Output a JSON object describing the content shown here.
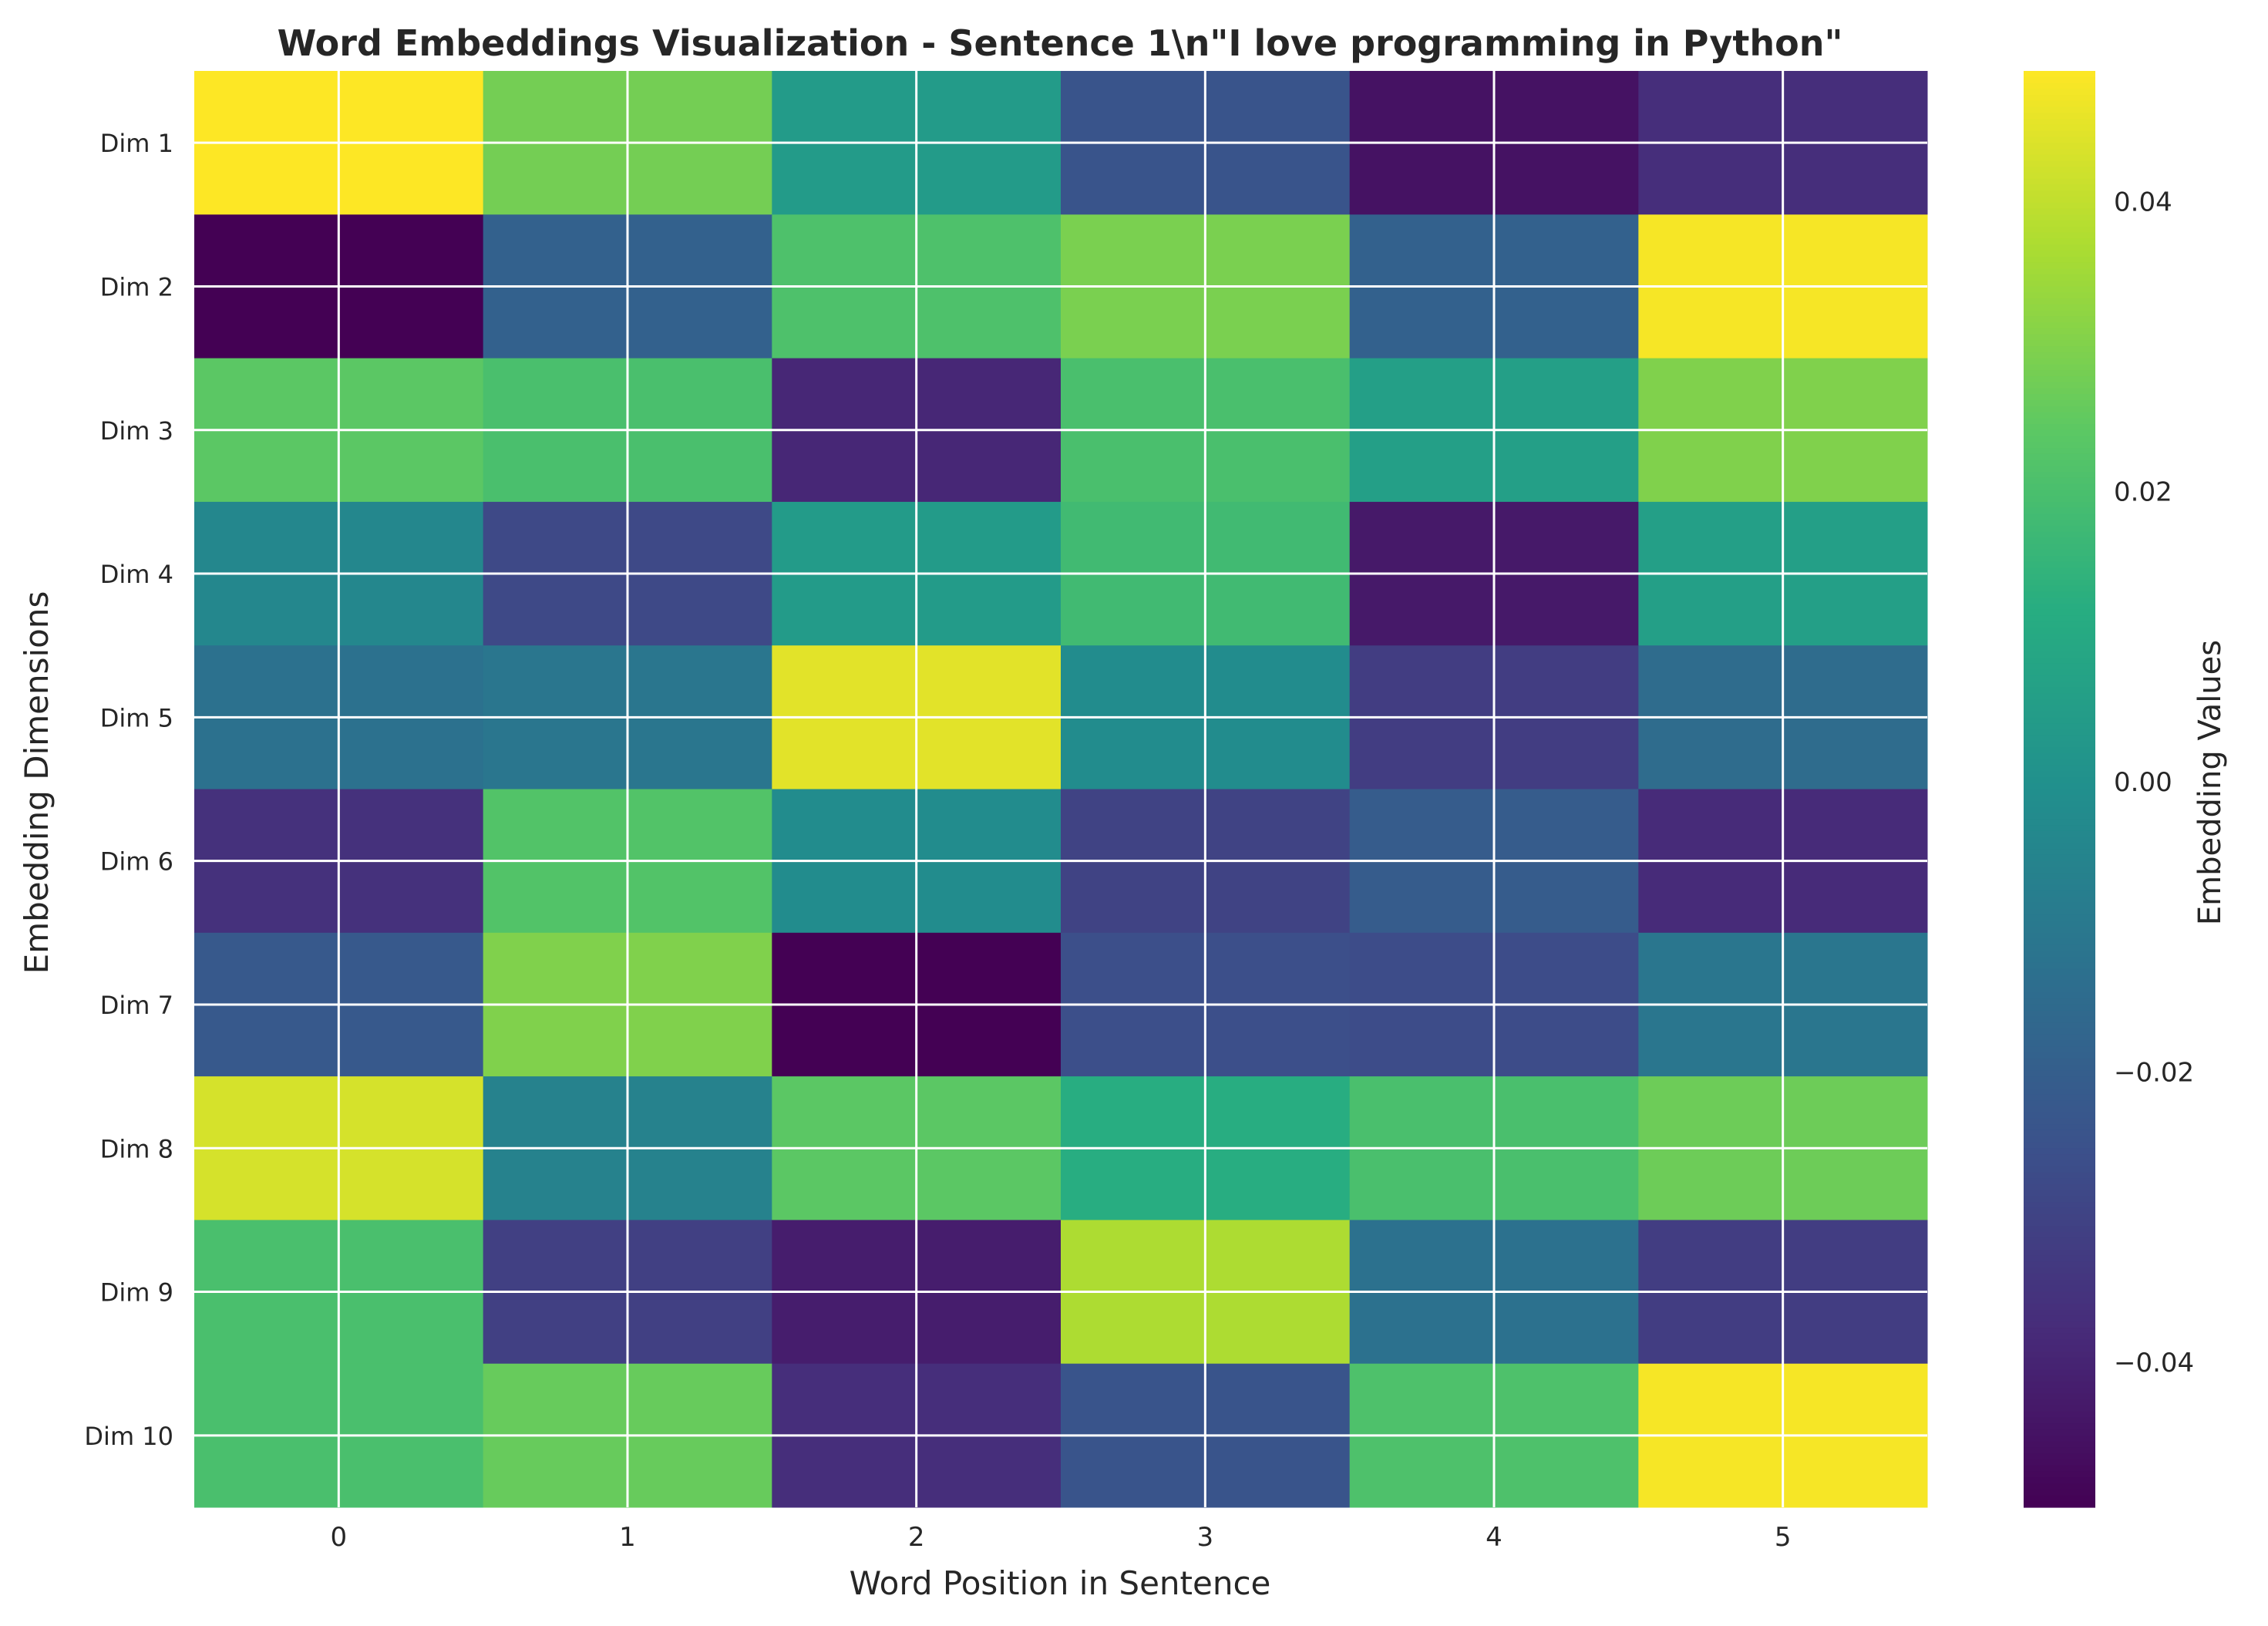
{
  "chart_data": {
    "type": "heatmap",
    "title": "Word Embeddings Visualization - Sentence 1\\n\"I love programming in Python\"",
    "xlabel": "Word Position in Sentence",
    "ylabel": "Embedding Dimensions",
    "x_categories": [
      "0",
      "1",
      "2",
      "3",
      "4",
      "5"
    ],
    "y_categories": [
      "Dim 1",
      "Dim 2",
      "Dim 3",
      "Dim 4",
      "Dim 5",
      "Dim 6",
      "Dim 7",
      "Dim 8",
      "Dim 9",
      "Dim 10"
    ],
    "values": [
      [
        0.049,
        0.028,
        0.004,
        -0.024,
        -0.045,
        -0.037
      ],
      [
        -0.05,
        -0.019,
        0.021,
        0.029,
        -0.019,
        0.048
      ],
      [
        0.024,
        0.02,
        -0.039,
        0.02,
        0.006,
        0.03
      ],
      [
        -0.004,
        -0.028,
        0.004,
        0.018,
        -0.043,
        0.006
      ],
      [
        -0.013,
        -0.011,
        0.045,
        -0.002,
        -0.032,
        -0.015
      ],
      [
        -0.036,
        0.022,
        -0.002,
        -0.03,
        -0.021,
        -0.038
      ],
      [
        -0.022,
        0.03,
        -0.05,
        -0.026,
        -0.027,
        -0.011
      ],
      [
        0.043,
        -0.006,
        0.024,
        0.012,
        0.02,
        0.027
      ],
      [
        0.02,
        -0.031,
        -0.042,
        0.037,
        -0.013,
        -0.032
      ],
      [
        0.02,
        0.026,
        -0.037,
        -0.024,
        0.021,
        0.048
      ]
    ],
    "colormap": "viridis",
    "vmin": -0.05,
    "vmax": 0.049,
    "colorbar": {
      "label": "Embedding Values",
      "ticks": [
        -0.04,
        -0.02,
        0.0,
        0.02,
        0.04
      ],
      "tick_labels": [
        "−0.04",
        "−0.02",
        "0.00",
        "0.02",
        "0.04"
      ]
    },
    "grid": true,
    "grid_color": "#ffffff"
  }
}
